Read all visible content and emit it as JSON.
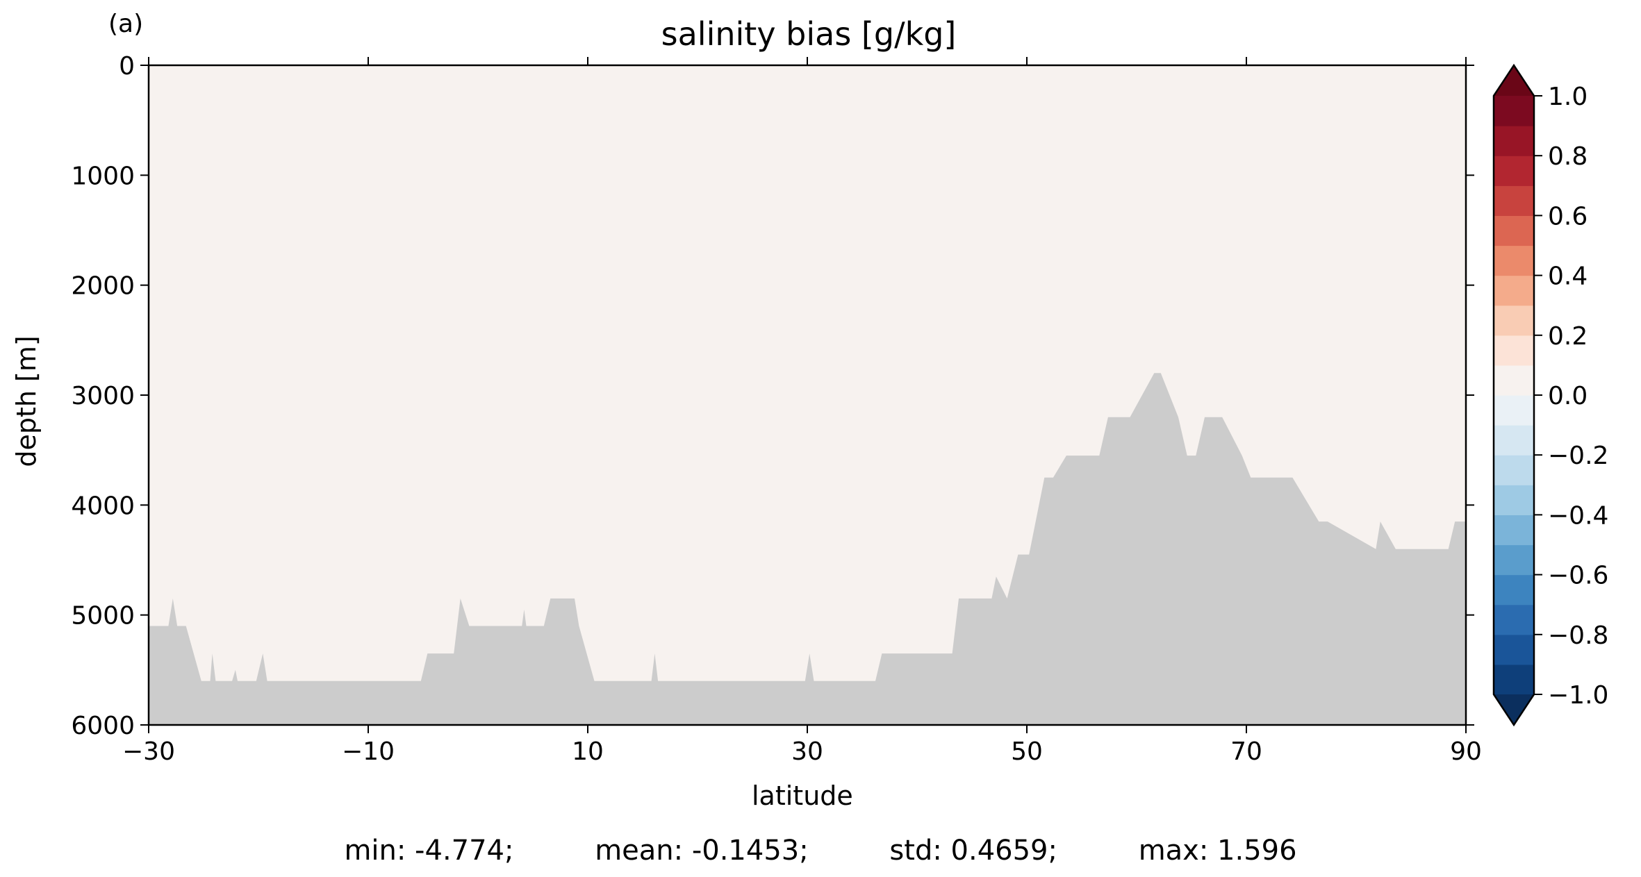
{
  "panel_label": "(a)",
  "chart_data": {
    "type": "heatmap",
    "title": "salinity bias [g/kg]",
    "xlabel": "latitude",
    "ylabel": "depth [m]",
    "xlim": [
      -30,
      90
    ],
    "ylim": [
      6000,
      0
    ],
    "y_inverted": true,
    "x_ticks": [
      "−30",
      "−10",
      "10",
      "30",
      "50",
      "70",
      "90"
    ],
    "x_tick_values": [
      -30,
      -10,
      10,
      30,
      50,
      70,
      90
    ],
    "y_ticks": [
      "0",
      "1000",
      "2000",
      "3000",
      "4000",
      "5000",
      "6000"
    ],
    "y_tick_values": [
      0,
      1000,
      2000,
      3000,
      4000,
      5000,
      6000
    ],
    "colorbar": {
      "levels": [
        -1.0,
        -0.9,
        -0.8,
        -0.7,
        -0.6,
        -0.5,
        -0.4,
        -0.3,
        -0.2,
        -0.1,
        0.0,
        0.1,
        0.2,
        0.3,
        0.4,
        0.5,
        0.6,
        0.7,
        0.8,
        0.9,
        1.0
      ],
      "tick_values": [
        -1.0,
        -0.8,
        -0.6,
        -0.4,
        -0.2,
        0.0,
        0.2,
        0.4,
        0.6,
        0.8,
        1.0
      ],
      "tick_labels": [
        "−1.0",
        "−0.8",
        "−0.6",
        "−0.4",
        "−0.2",
        "0.0",
        "0.2",
        "0.4",
        "0.6",
        "0.8",
        "1.0"
      ],
      "extend": "both",
      "colormap": "RdBu_r",
      "colors": [
        "#0e3f7a",
        "#1a5599",
        "#2b6cb0",
        "#3d84bf",
        "#5a9dcc",
        "#7bb4d9",
        "#9ecae4",
        "#bddaec",
        "#d6e7f2",
        "#eaf1f6",
        "#f7f2ef",
        "#fce3d7",
        "#f9ccb4",
        "#f4ab8b",
        "#eb8a6b",
        "#dc6652",
        "#c8433e",
        "#b22630",
        "#981526",
        "#7c0a20"
      ],
      "under_color": "#0b2f5e",
      "over_color": "#6a0617"
    },
    "land_color": "#cccccc",
    "bathymetry": {
      "lat": [
        -30,
        -28.2,
        -27.8,
        -27.4,
        -26.6,
        -25.2,
        -24.4,
        -24.2,
        -23.9,
        -22.4,
        -22.1,
        -21.9,
        -20.2,
        -19.6,
        -19.2,
        -5.2,
        -4.6,
        -2.2,
        -1.6,
        -0.8,
        4.0,
        4.2,
        4.4,
        6.0,
        6.6,
        8.8,
        9.2,
        10.6,
        15.8,
        16.1,
        16.4,
        29.8,
        30.2,
        30.6,
        36.2,
        36.8,
        43.2,
        43.8,
        46.8,
        47.2,
        48.2,
        48.7,
        49.2,
        50.2,
        51.6,
        52.4,
        53.6,
        56.6,
        57.4,
        59.4,
        61.6,
        62.2,
        63.8,
        64.6,
        65.4,
        66.2,
        67.8,
        69.6,
        70.4,
        71.2,
        73.4,
        74.2,
        76.6,
        77.4,
        81.8,
        82.2,
        83.6,
        84.6,
        88.4,
        89.0,
        90
      ],
      "depth": [
        5100,
        5100,
        4850,
        5100,
        5100,
        5600,
        5600,
        5350,
        5600,
        5600,
        5500,
        5600,
        5600,
        5350,
        5600,
        5600,
        5350,
        5350,
        4850,
        5100,
        5100,
        4950,
        5100,
        5100,
        4850,
        4850,
        5100,
        5600,
        5600,
        5350,
        5600,
        5600,
        5350,
        5600,
        5600,
        5350,
        5350,
        4850,
        4850,
        4650,
        4850,
        4650,
        4450,
        4450,
        3750,
        3750,
        3550,
        3550,
        3200,
        3200,
        2800,
        2800,
        3200,
        3550,
        3550,
        3200,
        3200,
        3550,
        3750,
        3750,
        3750,
        3750,
        4150,
        4150,
        4400,
        4150,
        4400,
        4400,
        4400,
        4150,
        4150
      ]
    },
    "stats": {
      "min": "min: -4.774;",
      "mean": "mean: -0.1453;",
      "std": "std: 0.4659;",
      "max": "max: 1.596"
    }
  }
}
